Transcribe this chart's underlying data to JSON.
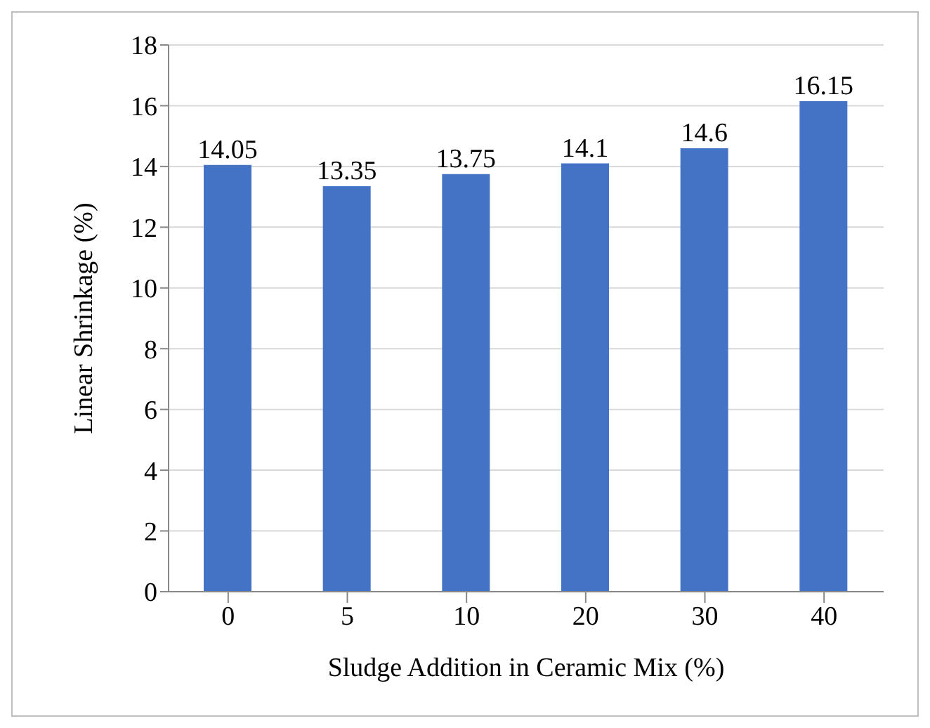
{
  "chart_data": {
    "type": "bar",
    "xlabel": "Sludge Addition in Ceramic Mix (%)",
    "ylabel": "Linear Shrinkage (%)",
    "categories": [
      "0",
      "5",
      "10",
      "20",
      "30",
      "40"
    ],
    "values": [
      14.05,
      13.35,
      13.75,
      14.1,
      14.6,
      16.15
    ],
    "color": "#4472c4",
    "ylim": [
      0,
      18
    ],
    "yticks": [
      0,
      2,
      4,
      6,
      8,
      10,
      12,
      14,
      16,
      18
    ],
    "grid": "y",
    "data_labels": true
  }
}
